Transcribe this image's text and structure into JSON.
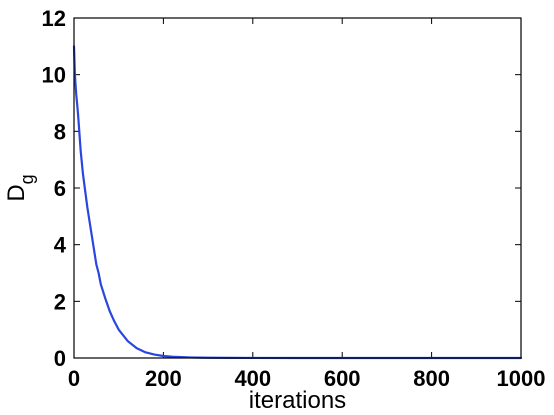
{
  "chart_data": {
    "type": "line",
    "title": "",
    "xlabel": "iterations",
    "ylabel": "D",
    "ylabel_subscript": "g",
    "xlim": [
      0,
      1000
    ],
    "ylim": [
      0,
      12
    ],
    "xticks": [
      0,
      200,
      400,
      600,
      800,
      1000
    ],
    "yticks": [
      0,
      2,
      4,
      6,
      8,
      10,
      12
    ],
    "xtick_labels": [
      "0",
      "200",
      "400",
      "600",
      "800",
      "1000"
    ],
    "ytick_labels": [
      "0",
      "2",
      "4",
      "6",
      "8",
      "10",
      "12"
    ],
    "grid": false,
    "legend": "none",
    "series": [
      {
        "color": "#2b46e0",
        "x": [
          0,
          2,
          5,
          8,
          10,
          15,
          20,
          25,
          30,
          35,
          40,
          45,
          50,
          55,
          60,
          70,
          80,
          90,
          100,
          120,
          140,
          160,
          180,
          200,
          220,
          240,
          260,
          280,
          300,
          350,
          400,
          500,
          600,
          700,
          800,
          900,
          1000
        ],
        "y": [
          11.0,
          10.0,
          9.3,
          8.8,
          8.4,
          7.3,
          6.5,
          5.9,
          5.3,
          4.8,
          4.3,
          3.8,
          3.3,
          3.0,
          2.6,
          2.1,
          1.65,
          1.3,
          1.0,
          0.6,
          0.35,
          0.2,
          0.12,
          0.07,
          0.045,
          0.03,
          0.02,
          0.012,
          0.008,
          0.004,
          0.002,
          0.001,
          0.0005,
          0.0003,
          0.0002,
          0.0001,
          0.0001
        ]
      }
    ]
  }
}
